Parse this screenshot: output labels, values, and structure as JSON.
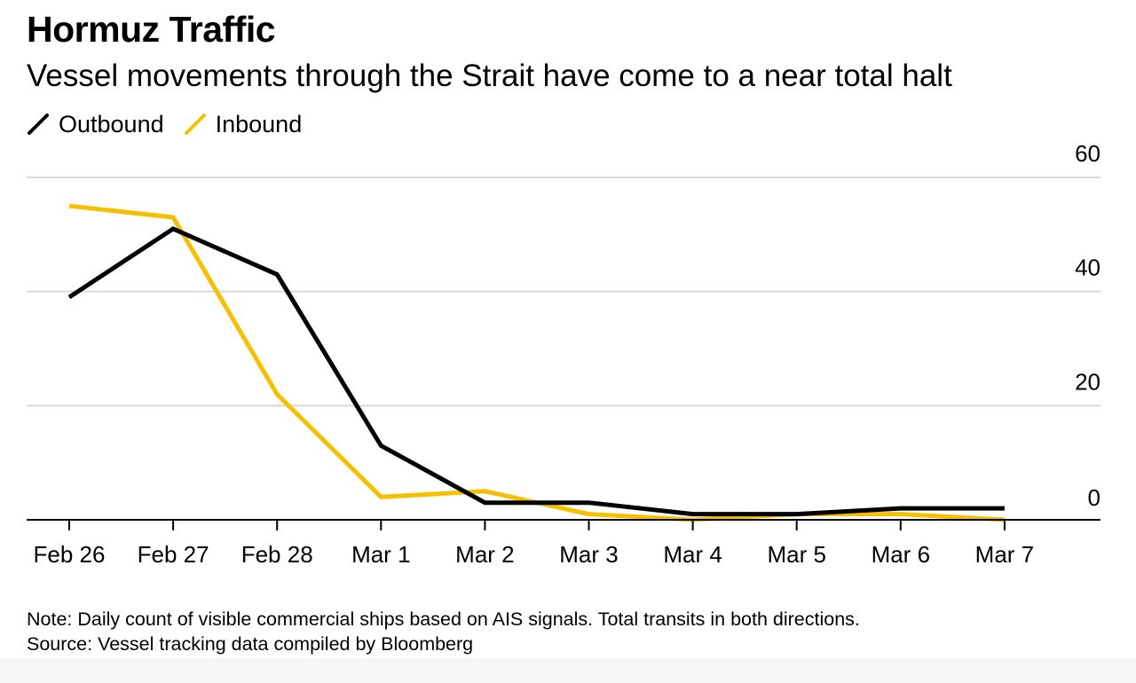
{
  "header": {
    "title": "Hormuz Traffic",
    "subtitle": "Vessel movements through the Strait have come to a near total halt"
  },
  "footer": {
    "note": "Note: Daily count of visible commercial ships based on AIS signals. Total transits in both directions.",
    "source": "Source: Vessel tracking data compiled by Bloomberg"
  },
  "chart_data": {
    "type": "line",
    "title": "Hormuz Traffic",
    "subtitle": "Vessel movements through the Strait have come to a near total halt",
    "categories": [
      "Feb 26",
      "Feb 27",
      "Feb 28",
      "Mar 1",
      "Mar 2",
      "Mar 3",
      "Mar 4",
      "Mar 5",
      "Mar 6",
      "Mar 7"
    ],
    "series": [
      {
        "name": "Outbound",
        "color": "#000000",
        "values": [
          39,
          51,
          43,
          13,
          3,
          3,
          1,
          1,
          2,
          2
        ]
      },
      {
        "name": "Inbound",
        "color": "#f5c000",
        "values": [
          55,
          53,
          22,
          4,
          5,
          1,
          0,
          1,
          1,
          0
        ]
      }
    ],
    "y_ticks": [
      0,
      20,
      40,
      60
    ],
    "ylim": [
      0,
      60
    ],
    "xlabel": "",
    "ylabel": "",
    "grid": true,
    "y_axis_side": "right",
    "legend_position": "top-left"
  }
}
